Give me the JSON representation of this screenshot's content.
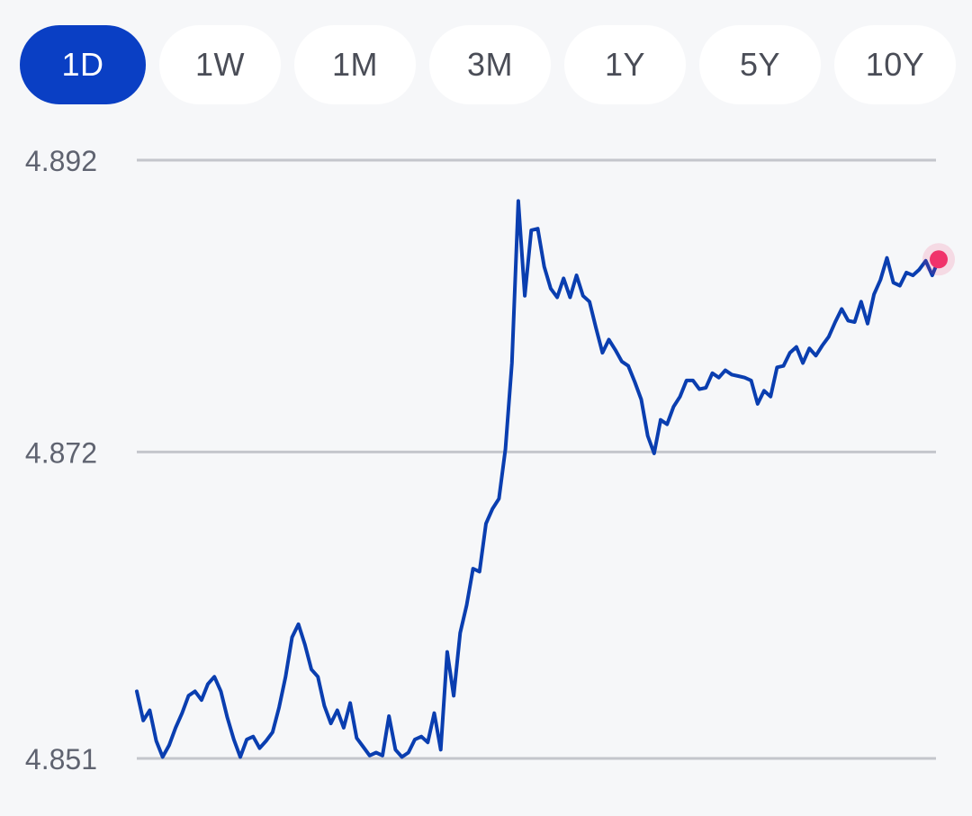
{
  "tabs": [
    {
      "label": "1D",
      "active": true
    },
    {
      "label": "1W",
      "active": false
    },
    {
      "label": "1M",
      "active": false
    },
    {
      "label": "3M",
      "active": false
    },
    {
      "label": "1Y",
      "active": false
    },
    {
      "label": "5Y",
      "active": false
    },
    {
      "label": "10Y",
      "active": false
    }
  ],
  "colors": {
    "accent": "#0a3fc4",
    "line": "#0a3eb0",
    "last_point": "#f0336b",
    "gridline": "#c4c6cc",
    "tick_text": "#5f6370"
  },
  "chart_data": {
    "type": "line",
    "title": "",
    "xlabel": "",
    "ylabel": "",
    "ylim": [
      4.851,
      4.892
    ],
    "yticks": [
      "4.892",
      "4.872",
      "4.851"
    ],
    "grid": true,
    "series": [
      {
        "values": [
          4.8556,
          4.8536,
          4.8543,
          4.8522,
          4.8511,
          4.8519,
          4.8531,
          4.8541,
          4.8553,
          4.8556,
          4.855,
          4.8561,
          4.8566,
          4.8556,
          4.8538,
          4.8523,
          4.8511,
          4.8523,
          4.8525,
          4.8517,
          4.8522,
          4.8528,
          4.8545,
          4.8566,
          4.8593,
          4.8602,
          4.8588,
          4.8571,
          4.8566,
          4.8546,
          4.8534,
          4.8543,
          4.8531,
          4.8548,
          4.8524,
          4.8518,
          4.8512,
          4.8514,
          4.8512,
          4.8539,
          4.8516,
          4.8511,
          4.8514,
          4.8523,
          4.8525,
          4.8521,
          4.8541,
          4.8516,
          4.8583,
          4.8553,
          4.8596,
          4.8615,
          4.864,
          4.8638,
          4.8671,
          4.8681,
          4.8688,
          4.8722,
          4.8781,
          4.8892,
          4.8827,
          4.8872,
          4.8873,
          4.8847,
          4.8832,
          4.8826,
          4.8839,
          4.8826,
          4.8841,
          4.8827,
          4.8823,
          4.8805,
          4.8788,
          4.8797,
          4.879,
          4.8782,
          4.8779,
          4.8768,
          4.8756,
          4.8731,
          4.8719,
          4.8742,
          4.8739,
          4.8751,
          4.8758,
          4.8769,
          4.8769,
          4.8763,
          4.8764,
          4.8774,
          4.8771,
          4.8776,
          4.8773,
          4.8772,
          4.8771,
          4.8769,
          4.8753,
          4.8762,
          4.8758,
          4.8778,
          4.8779,
          4.8788,
          4.8792,
          4.8781,
          4.8791,
          4.8786,
          4.8793,
          4.8799,
          4.8809,
          4.8818,
          4.881,
          4.8809,
          4.8823,
          4.8808,
          4.8828,
          4.8838,
          4.8853,
          4.8836,
          4.8834,
          4.8843,
          4.8841,
          4.8845,
          4.8851,
          4.8841,
          4.8852
        ],
        "last_value": 4.8852
      }
    ]
  }
}
